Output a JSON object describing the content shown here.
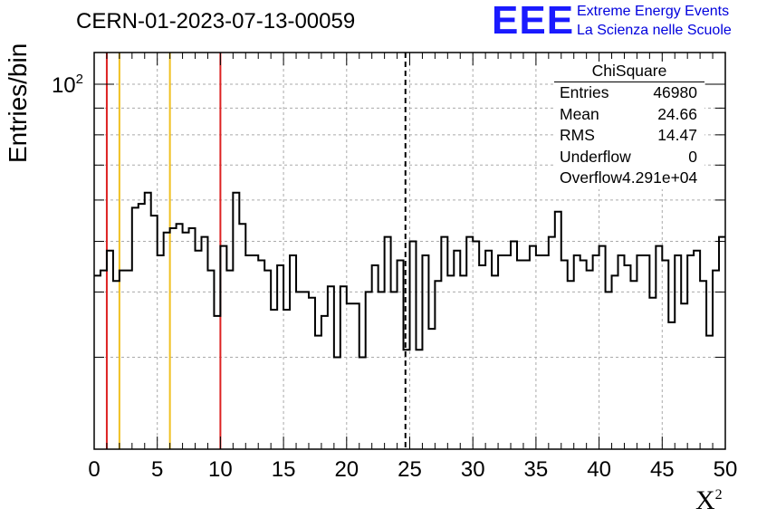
{
  "title": "CERN-01-2023-07-13-00059",
  "logo": {
    "mark": "EEE",
    "line1": "Extreme Energy Events",
    "line2": "La Scienza nelle Scuole"
  },
  "stats_box": {
    "title": "ChiSquare",
    "rows": [
      {
        "label": "Entries",
        "value": "46980"
      },
      {
        "label": "Mean",
        "value": "24.66"
      },
      {
        "label": "RMS",
        "value": "14.47"
      },
      {
        "label": "Underflow",
        "value": "0"
      },
      {
        "label": "Overflow",
        "value": "4.291e+04"
      }
    ]
  },
  "chart_data": {
    "type": "histogram",
    "title": "CERN-01-2023-07-13-00059",
    "xlabel": "X",
    "xlabel_superscript": "2",
    "ylabel": "Entries/bin",
    "xlim": [
      0,
      50
    ],
    "x_ticks": [
      "0",
      "5",
      "10",
      "15",
      "20",
      "25",
      "30",
      "35",
      "40",
      "45",
      "50"
    ],
    "y_scale": "log",
    "ylim": [
      20,
      115
    ],
    "y_tick_label": "10",
    "y_tick_label_exponent": "2",
    "grid": true,
    "bin_width": 0.5,
    "bin_start": 0,
    "values": [
      43,
      44,
      48,
      42,
      44,
      44,
      58,
      59,
      62,
      56,
      47,
      52,
      53,
      54,
      52,
      53,
      48,
      51,
      44,
      36,
      49,
      44,
      62,
      54,
      47,
      47,
      46,
      44,
      37,
      45,
      37,
      47,
      40,
      40,
      39,
      33,
      36,
      41,
      30,
      41,
      38,
      38,
      30,
      40,
      45,
      40,
      51,
      40,
      46,
      31,
      50,
      31,
      47,
      34,
      42,
      51,
      43,
      48,
      43,
      51,
      50,
      45,
      48,
      43,
      47,
      47,
      50,
      46,
      46,
      49,
      47,
      47,
      51,
      57,
      46,
      42,
      47,
      46,
      44,
      47,
      49,
      40,
      43,
      47,
      45,
      42,
      47,
      47,
      39,
      49,
      46,
      35,
      47,
      38,
      47,
      48,
      42,
      33,
      44,
      51
    ],
    "reference_lines": [
      {
        "x": 1,
        "color": "#dd2222"
      },
      {
        "x": 2,
        "color": "#f0c020"
      },
      {
        "x": 6,
        "color": "#f0c020"
      },
      {
        "x": 10,
        "color": "#dd2222"
      }
    ],
    "mean_line": {
      "x": 24.66,
      "style": "dashed",
      "color": "#000000"
    },
    "colors": {
      "histogram": "#000000",
      "grid": "#aaaaaa",
      "red_line": "#dd2222",
      "yellow_line": "#f0c020",
      "logo": "#1a1aff"
    }
  }
}
